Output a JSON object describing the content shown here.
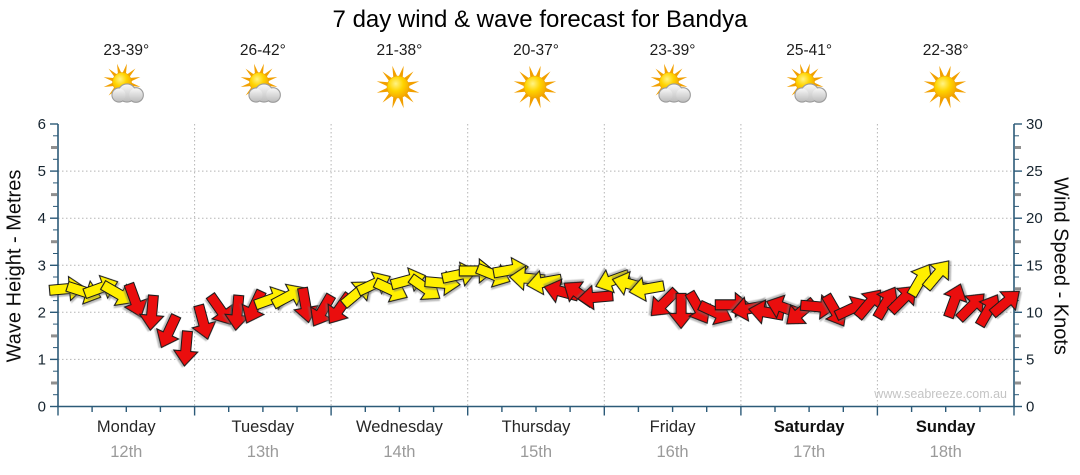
{
  "title": "7 day wind & wave forecast for Bandya",
  "watermark": "www.seabreeze.com.au",
  "left_axis": {
    "label": "Wave Height - Metres",
    "min": 0,
    "max": 6,
    "tick_labels": [
      0,
      1,
      2,
      3,
      4,
      5,
      6
    ]
  },
  "right_axis": {
    "label": "Wind Speed - Knots",
    "min": 0,
    "max": 30,
    "tick_labels": [
      0,
      5,
      10,
      15,
      20,
      25,
      30
    ]
  },
  "days": [
    {
      "name": "Monday",
      "date": "12th",
      "temp": "23-39°",
      "icon": "partly-cloudy",
      "bold": false
    },
    {
      "name": "Tuesday",
      "date": "13th",
      "temp": "26-42°",
      "icon": "partly-cloudy",
      "bold": false
    },
    {
      "name": "Wednesday",
      "date": "14th",
      "temp": "21-38°",
      "icon": "sunny",
      "bold": false
    },
    {
      "name": "Thursday",
      "date": "15th",
      "temp": "20-37°",
      "icon": "sunny",
      "bold": false
    },
    {
      "name": "Friday",
      "date": "16th",
      "temp": "23-39°",
      "icon": "partly-cloudy",
      "bold": false
    },
    {
      "name": "Saturday",
      "date": "17th",
      "temp": "25-41°",
      "icon": "partly-cloudy",
      "bold": true
    },
    {
      "name": "Sunday",
      "date": "18th",
      "temp": "22-38°",
      "icon": "sunny",
      "bold": true
    }
  ],
  "colors": {
    "yellow": "#ffef00",
    "red": "#ea0e0e",
    "axis": "#2c5a78",
    "grid": "#b5b5b5",
    "date_text": "#9a9a9a",
    "watermark_text": "#c4c4c4"
  },
  "chart_data": {
    "type": "scatter",
    "subtype": "wind-direction-arrows",
    "title": "7 day wind & wave forecast for Bandya",
    "x_categories": [
      "Monday 12th",
      "Tuesday 13th",
      "Wednesday 14th",
      "Thursday 15th",
      "Friday 16th",
      "Saturday 17th",
      "Sunday 18th"
    ],
    "x_resolution": "8 arrows per day (3-hourly), slot 0-7 within each day",
    "ylabel_left": "Wave Height - Metres",
    "ylim_left": [
      0,
      6
    ],
    "ylabel_right": "Wind Speed - Knots",
    "ylim_right": [
      0,
      30
    ],
    "grid": "dotted horizontal at 1-5 m (5-25 kn), dotted vertical at day boundaries",
    "dir_convention": "dir_deg: 0 = arrow points right, positive = clockwise (90 = down)",
    "arrows": [
      {
        "day": 0,
        "slot": 0,
        "knots": 12.5,
        "dir_deg": -5,
        "color": "yellow"
      },
      {
        "day": 0,
        "slot": 1,
        "knots": 12.2,
        "dir_deg": 18,
        "color": "yellow"
      },
      {
        "day": 0,
        "slot": 2,
        "knots": 12.6,
        "dir_deg": -20,
        "color": "yellow"
      },
      {
        "day": 0,
        "slot": 3,
        "knots": 12.0,
        "dir_deg": 30,
        "color": "yellow"
      },
      {
        "day": 0,
        "slot": 4,
        "knots": 11.3,
        "dir_deg": 70,
        "color": "red"
      },
      {
        "day": 0,
        "slot": 5,
        "knots": 10.0,
        "dir_deg": 95,
        "color": "red"
      },
      {
        "day": 0,
        "slot": 6,
        "knots": 8.0,
        "dir_deg": 115,
        "color": "red"
      },
      {
        "day": 0,
        "slot": 7,
        "knots": 6.2,
        "dir_deg": 95,
        "color": "red"
      },
      {
        "day": 1,
        "slot": 0,
        "knots": 9.0,
        "dir_deg": 75,
        "color": "red"
      },
      {
        "day": 1,
        "slot": 1,
        "knots": 10.3,
        "dir_deg": 55,
        "color": "red"
      },
      {
        "day": 1,
        "slot": 2,
        "knots": 10.0,
        "dir_deg": 95,
        "color": "red"
      },
      {
        "day": 1,
        "slot": 3,
        "knots": 10.6,
        "dir_deg": 115,
        "color": "red"
      },
      {
        "day": 1,
        "slot": 4,
        "knots": 11.4,
        "dir_deg": -20,
        "color": "yellow"
      },
      {
        "day": 1,
        "slot": 5,
        "knots": 11.7,
        "dir_deg": -28,
        "color": "yellow"
      },
      {
        "day": 1,
        "slot": 6,
        "knots": 10.8,
        "dir_deg": 80,
        "color": "red"
      },
      {
        "day": 1,
        "slot": 7,
        "knots": 10.2,
        "dir_deg": 120,
        "color": "red"
      },
      {
        "day": 2,
        "slot": 0,
        "knots": 10.4,
        "dir_deg": 125,
        "color": "red"
      },
      {
        "day": 2,
        "slot": 1,
        "knots": 12.0,
        "dir_deg": -40,
        "color": "yellow"
      },
      {
        "day": 2,
        "slot": 2,
        "knots": 13.0,
        "dir_deg": -25,
        "color": "yellow"
      },
      {
        "day": 2,
        "slot": 3,
        "knots": 12.4,
        "dir_deg": 25,
        "color": "yellow"
      },
      {
        "day": 2,
        "slot": 4,
        "knots": 13.4,
        "dir_deg": -15,
        "color": "yellow"
      },
      {
        "day": 2,
        "slot": 5,
        "knots": 12.6,
        "dir_deg": 35,
        "color": "yellow"
      },
      {
        "day": 2,
        "slot": 6,
        "knots": 13.1,
        "dir_deg": 5,
        "color": "yellow"
      },
      {
        "day": 2,
        "slot": 7,
        "knots": 14.0,
        "dir_deg": -12,
        "color": "yellow"
      },
      {
        "day": 3,
        "slot": 0,
        "knots": 14.4,
        "dir_deg": 0,
        "color": "yellow"
      },
      {
        "day": 3,
        "slot": 1,
        "knots": 14.0,
        "dir_deg": 22,
        "color": "yellow"
      },
      {
        "day": 3,
        "slot": 2,
        "knots": 14.5,
        "dir_deg": -10,
        "color": "yellow"
      },
      {
        "day": 3,
        "slot": 3,
        "knots": 13.6,
        "dir_deg": 185,
        "color": "yellow"
      },
      {
        "day": 3,
        "slot": 4,
        "knots": 13.2,
        "dir_deg": 170,
        "color": "yellow"
      },
      {
        "day": 3,
        "slot": 5,
        "knots": 12.2,
        "dir_deg": 195,
        "color": "red"
      },
      {
        "day": 3,
        "slot": 6,
        "knots": 12.0,
        "dir_deg": 215,
        "color": "red"
      },
      {
        "day": 3,
        "slot": 7,
        "knots": 11.6,
        "dir_deg": 175,
        "color": "red"
      },
      {
        "day": 4,
        "slot": 0,
        "knots": 13.4,
        "dir_deg": 160,
        "color": "yellow"
      },
      {
        "day": 4,
        "slot": 1,
        "knots": 13.0,
        "dir_deg": 195,
        "color": "yellow"
      },
      {
        "day": 4,
        "slot": 2,
        "knots": 12.5,
        "dir_deg": 170,
        "color": "yellow"
      },
      {
        "day": 4,
        "slot": 3,
        "knots": 11.0,
        "dir_deg": 135,
        "color": "red"
      },
      {
        "day": 4,
        "slot": 4,
        "knots": 10.2,
        "dir_deg": 90,
        "color": "red"
      },
      {
        "day": 4,
        "slot": 5,
        "knots": 10.5,
        "dir_deg": 60,
        "color": "red"
      },
      {
        "day": 4,
        "slot": 6,
        "knots": 10.0,
        "dir_deg": 25,
        "color": "red"
      },
      {
        "day": 4,
        "slot": 7,
        "knots": 10.8,
        "dir_deg": 0,
        "color": "red"
      },
      {
        "day": 5,
        "slot": 0,
        "knots": 10.4,
        "dir_deg": 170,
        "color": "red"
      },
      {
        "day": 5,
        "slot": 1,
        "knots": 10.0,
        "dir_deg": 190,
        "color": "red"
      },
      {
        "day": 5,
        "slot": 2,
        "knots": 10.5,
        "dir_deg": 200,
        "color": "red"
      },
      {
        "day": 5,
        "slot": 3,
        "knots": 10.0,
        "dir_deg": 140,
        "color": "red"
      },
      {
        "day": 5,
        "slot": 4,
        "knots": 10.6,
        "dir_deg": 5,
        "color": "red"
      },
      {
        "day": 5,
        "slot": 5,
        "knots": 10.2,
        "dir_deg": 60,
        "color": "red"
      },
      {
        "day": 5,
        "slot": 6,
        "knots": 10.4,
        "dir_deg": -25,
        "color": "red"
      },
      {
        "day": 5,
        "slot": 7,
        "knots": 10.9,
        "dir_deg": -50,
        "color": "red"
      },
      {
        "day": 6,
        "slot": 0,
        "knots": 11.0,
        "dir_deg": -60,
        "color": "red"
      },
      {
        "day": 6,
        "slot": 1,
        "knots": 11.4,
        "dir_deg": -45,
        "color": "red"
      },
      {
        "day": 6,
        "slot": 2,
        "knots": 13.4,
        "dir_deg": -60,
        "color": "yellow"
      },
      {
        "day": 6,
        "slot": 3,
        "knots": 14.0,
        "dir_deg": -50,
        "color": "yellow"
      },
      {
        "day": 6,
        "slot": 4,
        "knots": 11.2,
        "dir_deg": -70,
        "color": "red"
      },
      {
        "day": 6,
        "slot": 5,
        "knots": 10.6,
        "dir_deg": -45,
        "color": "red"
      },
      {
        "day": 6,
        "slot": 6,
        "knots": 10.2,
        "dir_deg": -60,
        "color": "red"
      },
      {
        "day": 6,
        "slot": 7,
        "knots": 11.0,
        "dir_deg": -40,
        "color": "red"
      }
    ]
  }
}
